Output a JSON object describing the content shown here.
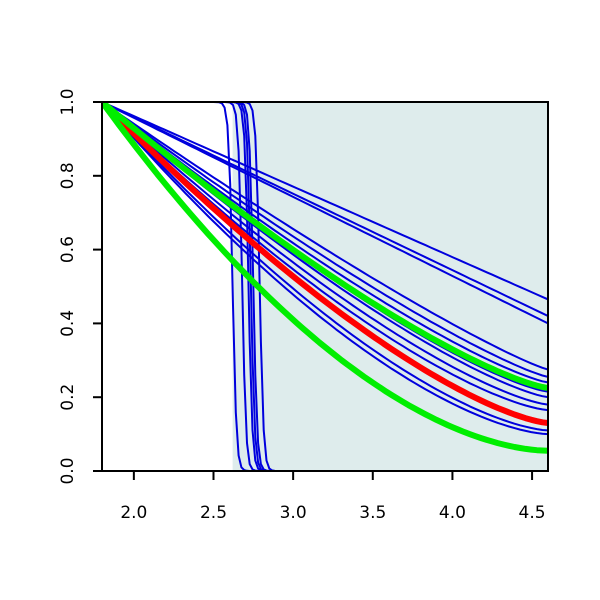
{
  "chart_data": {
    "type": "line",
    "title": "",
    "xlabel": "",
    "ylabel": "",
    "xlim": [
      1.8,
      4.6
    ],
    "ylim": [
      0.0,
      1.0
    ],
    "grid": false,
    "x_ticks": [
      {
        "value": 2.0,
        "label": "2.0"
      },
      {
        "value": 2.5,
        "label": "2.5"
      },
      {
        "value": 3.0,
        "label": "3.0"
      },
      {
        "value": 3.5,
        "label": "3.5"
      },
      {
        "value": 4.0,
        "label": "4.0"
      },
      {
        "value": 4.5,
        "label": "4.5"
      }
    ],
    "y_ticks": [
      {
        "value": 0.0,
        "label": "0.0"
      },
      {
        "value": 0.2,
        "label": "0.2"
      },
      {
        "value": 0.4,
        "label": "0.4"
      },
      {
        "value": 0.6,
        "label": "0.6"
      },
      {
        "value": 0.8,
        "label": "0.8"
      },
      {
        "value": 1.0,
        "label": "1.0"
      }
    ],
    "shaded_region": {
      "x": [
        2.62,
        4.6
      ],
      "y": [
        0.0,
        1.0
      ],
      "color": "#deecec"
    },
    "colors": {
      "axis": "#000000",
      "blue": "#0000dd",
      "red": "#ff0000",
      "green": "#00ee00"
    },
    "series": [
      {
        "kind": "step",
        "color": "#0000dd",
        "x0": 2.62,
        "width": 0.012
      },
      {
        "kind": "step",
        "color": "#0000dd",
        "x0": 2.68,
        "width": 0.012
      },
      {
        "kind": "step",
        "color": "#0000dd",
        "x0": 2.72,
        "width": 0.012
      },
      {
        "kind": "step",
        "color": "#0000dd",
        "x0": 2.735,
        "width": 0.012
      },
      {
        "kind": "step",
        "color": "#0000dd",
        "x0": 2.75,
        "width": 0.012
      },
      {
        "kind": "step",
        "color": "#0000dd",
        "x0": 2.79,
        "width": 0.012
      },
      {
        "kind": "decay",
        "color": "#0000dd",
        "x": [
          1.8,
          4.6
        ],
        "y": [
          1.0,
          0.465
        ],
        "curvature": 1.0
      },
      {
        "kind": "decay",
        "color": "#0000dd",
        "x": [
          1.8,
          4.6
        ],
        "y": [
          1.0,
          0.42
        ],
        "curvature": 1.0
      },
      {
        "kind": "decay",
        "color": "#0000dd",
        "x": [
          1.8,
          4.6
        ],
        "y": [
          1.0,
          0.4
        ],
        "curvature": 1.0
      },
      {
        "kind": "decay",
        "color": "#0000dd",
        "x": [
          1.8,
          4.6
        ],
        "y": [
          1.0,
          0.275
        ],
        "curvature": 1.15
      },
      {
        "kind": "decay",
        "color": "#0000dd",
        "x": [
          1.8,
          4.6
        ],
        "y": [
          1.0,
          0.255
        ],
        "curvature": 1.2
      },
      {
        "kind": "decay",
        "color": "#0000dd",
        "x": [
          1.8,
          4.6
        ],
        "y": [
          1.0,
          0.24
        ],
        "curvature": 1.25
      },
      {
        "kind": "decay",
        "color": "#0000dd",
        "x": [
          1.8,
          4.6
        ],
        "y": [
          1.0,
          0.215
        ],
        "curvature": 1.3
      },
      {
        "kind": "decay",
        "color": "#0000dd",
        "x": [
          1.8,
          4.6
        ],
        "y": [
          1.0,
          0.2
        ],
        "curvature": 1.3
      },
      {
        "kind": "decay",
        "color": "#0000dd",
        "x": [
          1.8,
          4.6
        ],
        "y": [
          1.0,
          0.18
        ],
        "curvature": 1.35
      },
      {
        "kind": "decay",
        "color": "#0000dd",
        "x": [
          1.8,
          4.6
        ],
        "y": [
          1.0,
          0.165
        ],
        "curvature": 1.4
      },
      {
        "kind": "decay",
        "color": "#0000dd",
        "x": [
          1.8,
          4.6
        ],
        "y": [
          1.0,
          0.11
        ],
        "curvature": 1.5
      },
      {
        "kind": "decay",
        "color": "#0000dd",
        "x": [
          1.8,
          4.6
        ],
        "y": [
          1.0,
          0.1
        ],
        "curvature": 1.55
      },
      {
        "kind": "decay",
        "color": "#ff0000",
        "x": [
          1.8,
          4.6
        ],
        "y": [
          1.0,
          0.13
        ],
        "curvature": 1.4,
        "bold": true
      },
      {
        "kind": "decay",
        "color": "#00ee00",
        "x": [
          1.8,
          4.6
        ],
        "y": [
          1.0,
          0.225
        ],
        "curvature": 1.3,
        "bold": true
      },
      {
        "kind": "decay",
        "color": "#00ee00",
        "x": [
          1.8,
          4.6
        ],
        "y": [
          1.0,
          0.055
        ],
        "curvature": 1.75,
        "bold": true
      }
    ]
  }
}
